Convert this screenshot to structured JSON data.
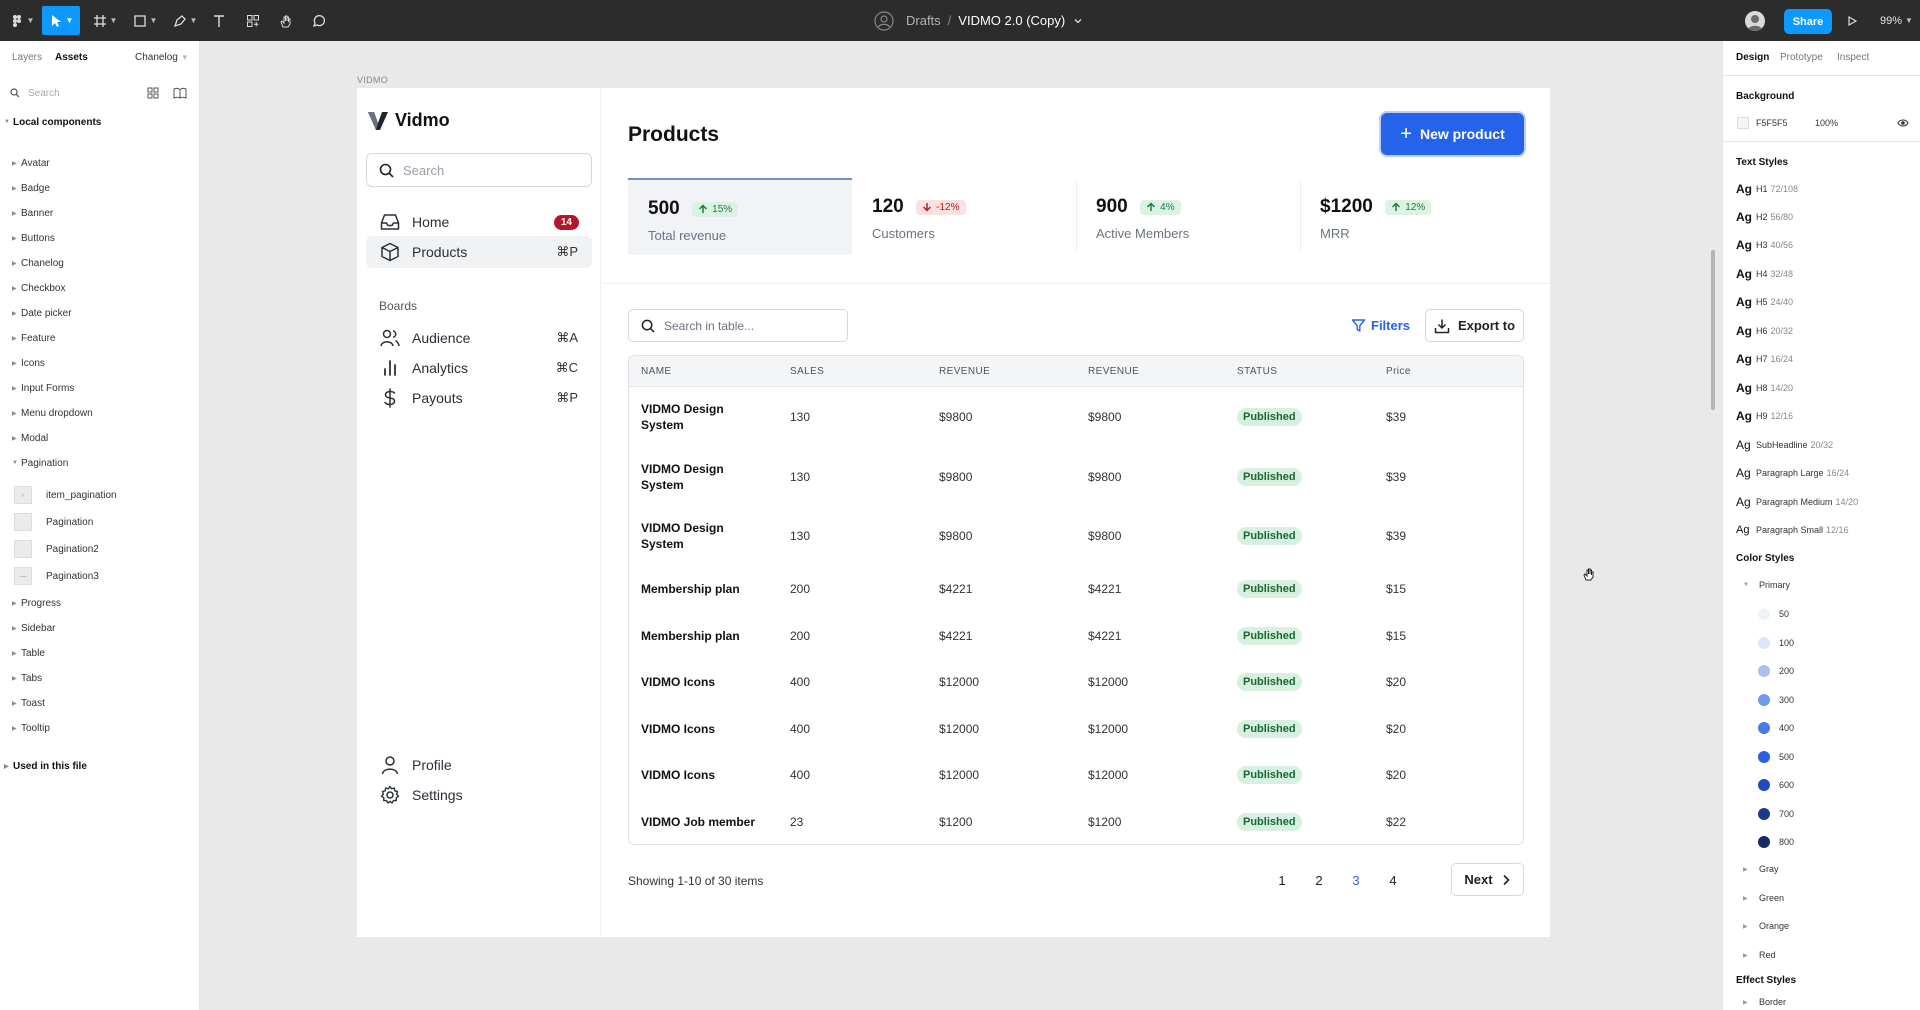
{
  "toolbar": {
    "breadcrumb_project": "Drafts",
    "breadcrumb_separator": "/",
    "file_name": "VIDMO 2.0 (Copy)",
    "share_label": "Share",
    "zoom": "99%"
  },
  "left_panel": {
    "tabs": [
      "Layers",
      "Assets"
    ],
    "library": "Chanelog",
    "search_placeholder": "Search",
    "local_components_label": "Local components",
    "components": [
      "Avatar",
      "Badge",
      "Banner",
      "Buttons",
      "Chanelog",
      "Checkbox",
      "Date picker",
      "Feature",
      "Icons",
      "Input Forms",
      "Menu dropdown",
      "Modal",
      "Pagination"
    ],
    "pagination_children": [
      "item_pagination",
      "Pagination",
      "Pagination2",
      "Pagination3"
    ],
    "components_after": [
      "Progress",
      "Sidebar",
      "Table",
      "Tabs",
      "Toast",
      "Tooltip"
    ],
    "used_in_file_label": "Used in this file"
  },
  "frame": {
    "label": "VIDMO",
    "brand": "Vidmo",
    "search_placeholder": "Search",
    "nav": [
      {
        "label": "Home",
        "badge": "14",
        "icon": "inbox-icon"
      },
      {
        "label": "Products",
        "shortcut": "⌘P",
        "icon": "box-icon",
        "active": true
      }
    ],
    "boards_label": "Boards",
    "boards": [
      {
        "label": "Audience",
        "shortcut": "⌘A",
        "icon": "users-icon"
      },
      {
        "label": "Analytics",
        "shortcut": "⌘C",
        "icon": "bar-chart-icon"
      },
      {
        "label": "Payouts",
        "shortcut": "⌘P",
        "icon": "dollar-icon"
      }
    ],
    "footer_nav": [
      {
        "label": "Profile",
        "icon": "user-icon"
      },
      {
        "label": "Settings",
        "icon": "gear-icon"
      }
    ]
  },
  "page": {
    "title": "Products",
    "new_button": "New product",
    "stats": [
      {
        "value": "500",
        "change": "15%",
        "trend": "up",
        "label": "Total revenue"
      },
      {
        "value": "120",
        "change": "-12%",
        "trend": "down",
        "label": "Customers"
      },
      {
        "value": "900",
        "change": "4%",
        "trend": "up",
        "label": "Active Members"
      },
      {
        "value": "$1200",
        "change": "12%",
        "trend": "up",
        "label": "MRR"
      }
    ],
    "table_search_placeholder": "Search in table...",
    "filters_label": "Filters",
    "export_label": "Export to",
    "columns": [
      "NAME",
      "SALES",
      "REVENUE",
      "REVENUE",
      "STATUS",
      "Price"
    ],
    "rows": [
      {
        "name": "VIDMO Design System",
        "sales": "130",
        "revenue": "$9800",
        "revenue2": "$9800",
        "status": "Published",
        "price": "$39"
      },
      {
        "name": "VIDMO Design System",
        "sales": "130",
        "revenue": "$9800",
        "revenue2": "$9800",
        "status": "Published",
        "price": "$39"
      },
      {
        "name": "VIDMO Design System",
        "sales": "130",
        "revenue": "$9800",
        "revenue2": "$9800",
        "status": "Published",
        "price": "$39"
      },
      {
        "name": "Membership plan",
        "sales": "200",
        "revenue": "$4221",
        "revenue2": "$4221",
        "status": "Published",
        "price": "$15"
      },
      {
        "name": "Membership plan",
        "sales": "200",
        "revenue": "$4221",
        "revenue2": "$4221",
        "status": "Published",
        "price": "$15"
      },
      {
        "name": "VIDMO Icons",
        "sales": "400",
        "revenue": "$12000",
        "revenue2": "$12000",
        "status": "Published",
        "price": "$20"
      },
      {
        "name": "VIDMO Icons",
        "sales": "400",
        "revenue": "$12000",
        "revenue2": "$12000",
        "status": "Published",
        "price": "$20"
      },
      {
        "name": "VIDMO Icons",
        "sales": "400",
        "revenue": "$12000",
        "revenue2": "$12000",
        "status": "Published",
        "price": "$20"
      },
      {
        "name": "VIDMO Job member",
        "sales": "23",
        "revenue": "$1200",
        "revenue2": "$1200",
        "status": "Published",
        "price": "$22"
      }
    ],
    "showing": "Showing 1-10 of 30 items",
    "pages": [
      "1",
      "2",
      "3",
      "4"
    ],
    "current_page": "3",
    "next_label": "Next"
  },
  "right_panel": {
    "tabs": [
      "Design",
      "Prototype",
      "Inspect"
    ],
    "background_label": "Background",
    "background_hex": "F5F5F5",
    "background_opacity": "100%",
    "text_styles_label": "Text Styles",
    "text_styles": [
      {
        "name": "H1",
        "spec": "72/108"
      },
      {
        "name": "H2",
        "spec": "56/80"
      },
      {
        "name": "H3",
        "spec": "40/56"
      },
      {
        "name": "H4",
        "spec": "32/48"
      },
      {
        "name": "H5",
        "spec": "24/40"
      },
      {
        "name": "H6",
        "spec": "20/32"
      },
      {
        "name": "H7",
        "spec": "16/24"
      },
      {
        "name": "H8",
        "spec": "14/20"
      },
      {
        "name": "H9",
        "spec": "12/16"
      },
      {
        "name": "SubHeadline",
        "spec": "20/32"
      },
      {
        "name": "Paragraph Large",
        "spec": "16/24"
      },
      {
        "name": "Paragraph Medium",
        "spec": "14/20"
      },
      {
        "name": "Paragraph Small",
        "spec": "12/16"
      }
    ],
    "ag_label": "Ag",
    "color_styles_label": "Color Styles",
    "primary_label": "Primary",
    "primary_shades": [
      {
        "name": "50",
        "color": "#eef2fc"
      },
      {
        "name": "100",
        "color": "#dde6fa"
      },
      {
        "name": "200",
        "color": "#aabff0"
      },
      {
        "name": "300",
        "color": "#7399ea"
      },
      {
        "name": "400",
        "color": "#4a7ae6"
      },
      {
        "name": "500",
        "color": "#2a5fe0"
      },
      {
        "name": "600",
        "color": "#1f4ac0"
      },
      {
        "name": "700",
        "color": "#1a3a8e"
      },
      {
        "name": "800",
        "color": "#152b63"
      }
    ],
    "other_color_groups": [
      "Gray",
      "Green",
      "Orange",
      "Red"
    ],
    "effect_styles_label": "Effect Styles",
    "effect_first": "Border"
  }
}
